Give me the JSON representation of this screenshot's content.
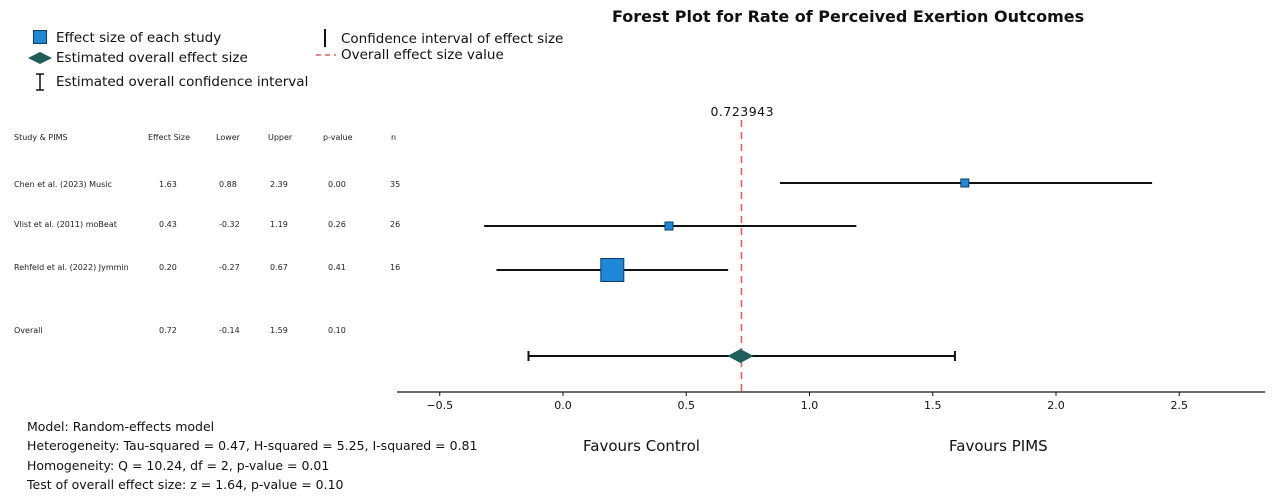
{
  "chart_data": {
    "type": "forest",
    "title": "Forest Plot for Rate of Perceived Exertion Outcomes",
    "legend": {
      "study_marker": "Effect size of each study",
      "overall_marker": "Estimated overall effect size",
      "overall_ci": "Estimated overall confidence interval",
      "study_ci": "Confidence interval of effect size",
      "overall_line": "Overall effect size value"
    },
    "columns": [
      "Study & PIMS",
      "Effect Size",
      "Lower",
      "Upper",
      "p-value",
      "n"
    ],
    "studies": [
      {
        "name": "Chen et al. (2023) Music",
        "effect": 1.63,
        "lower": 0.88,
        "upper": 2.39,
        "p": 0.0,
        "n": 35,
        "effect_text": "1.63",
        "lower_text": "0.88",
        "upper_text": "2.39",
        "p_text": "0.00",
        "n_text": "35"
      },
      {
        "name": "Vlist et al. (2011) moBeat",
        "effect": 0.43,
        "lower": -0.32,
        "upper": 1.19,
        "p": 0.26,
        "n": 26,
        "effect_text": "0.43",
        "lower_text": "-0.32",
        "upper_text": "1.19",
        "p_text": "0.26",
        "n_text": "26"
      },
      {
        "name": "Rehfeld et al. (2022) Jymmin",
        "effect": 0.2,
        "lower": -0.27,
        "upper": 0.67,
        "p": 0.41,
        "n": 16,
        "effect_text": "0.20",
        "lower_text": "-0.27",
        "upper_text": "0.67",
        "p_text": "0.41",
        "n_text": "16"
      }
    ],
    "overall": {
      "name": "Overall",
      "effect": 0.72,
      "lower": -0.14,
      "upper": 1.59,
      "p": 0.1,
      "effect_text": "0.72",
      "lower_text": "-0.14",
      "upper_text": "1.59",
      "p_text": "0.10"
    },
    "overall_line_value": 0.723943,
    "overall_line_label": "0.723943",
    "xlim": [
      -0.68,
      2.9
    ],
    "xticks": [
      -0.5,
      0.0,
      0.5,
      1.0,
      1.5,
      2.0,
      2.5
    ],
    "xtick_labels": [
      "−0.5",
      "0.0",
      "0.5",
      "1.0",
      "1.5",
      "2.0",
      "2.5"
    ],
    "favours_left": "Favours Control",
    "favours_right": "Favours PIMS",
    "stats": [
      "Model: Random-effects model",
      "Heterogeneity: Tau-squared = 0.47, H-squared = 5.25, I-squared = 0.81",
      "Homogeneity: Q = 10.24, df = 2, p-value = 0.01",
      "Test of overall effect size: z = 1.64, p-value = 0.10"
    ],
    "colors": {
      "study_marker": "#1f88d6",
      "overall_marker": "#1e5f5c",
      "overall_line": "#e0605e",
      "ci_line": "#111111"
    }
  }
}
